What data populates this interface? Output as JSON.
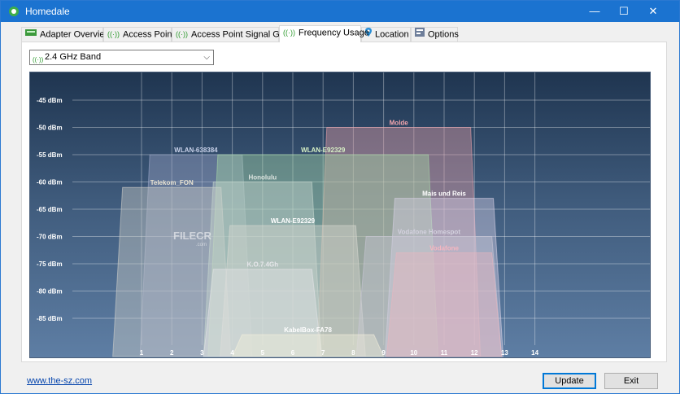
{
  "window": {
    "title": "Homedale",
    "minimize": "—",
    "maximize": "☐",
    "close": "✕"
  },
  "tabs": [
    {
      "label": "Adapter Overview"
    },
    {
      "label": "Access Points"
    },
    {
      "label": "Access Point Signal Graph"
    },
    {
      "label": "Frequency Usage"
    },
    {
      "label": "Location"
    },
    {
      "label": "Options"
    }
  ],
  "band_select": {
    "value": "2.4 GHz Band"
  },
  "chart_data": {
    "type": "area",
    "y_ticks": [
      "-45 dBm",
      "-50 dBm",
      "-55 dBm",
      "-60 dBm",
      "-65 dBm",
      "-70 dBm",
      "-75 dBm",
      "-80 dBm",
      "-85 dBm"
    ],
    "y_values": [
      -45,
      -50,
      -55,
      -60,
      -65,
      -70,
      -75,
      -80,
      -85
    ],
    "x_ticks": [
      "1",
      "2",
      "3",
      "4",
      "5",
      "6",
      "7",
      "8",
      "9",
      "10",
      "11",
      "12",
      "13",
      "14"
    ],
    "ylim": [
      -40,
      -95
    ],
    "networks": [
      {
        "name": "Molde",
        "center": 9.5,
        "width": 5.4,
        "level": -50,
        "color": "#e8a0a8",
        "label_color": "#f4a6ae"
      },
      {
        "name": "WLAN-638384",
        "center": 2.8,
        "width": 3.7,
        "level": -55,
        "color": "#9aa5c6",
        "label_color": "#c9d2ea"
      },
      {
        "name": "WLAN-E92329",
        "center": 7.0,
        "width": 7.6,
        "level": -55,
        "color": "#a8d9a8",
        "label_color": "#d8f2c6"
      },
      {
        "name": "Telekom_FON",
        "center": 2.0,
        "width": 3.9,
        "level": -61,
        "color": "#cfcfc9",
        "label_color": "#e8e3d2"
      },
      {
        "name": "Honolulu",
        "center": 5.0,
        "width": 3.9,
        "level": -60,
        "color": "#c7d7cf",
        "label_color": "#dde5e0"
      },
      {
        "name": "Mais und Reis",
        "center": 11.0,
        "width": 3.9,
        "level": -63,
        "color": "#d8d2e6",
        "label_color": "#ffffff"
      },
      {
        "name": "WLAN-E92329",
        "center": 6.0,
        "width": 4.8,
        "level": -68,
        "color": "#d9d9d2",
        "label_color": "#ffffff"
      },
      {
        "name": "Vodafone Homespot",
        "center": 10.5,
        "width": 4.8,
        "level": -70,
        "color": "#c9c7d6",
        "label_color": "#d4d2df"
      },
      {
        "name": "Vodafone",
        "center": 11.0,
        "width": 3.8,
        "level": -73,
        "color": "#eab6be",
        "label_color": "#f6b6c0"
      },
      {
        "name": "K.O.7.4Gh",
        "center": 5.0,
        "width": 3.9,
        "level": -76,
        "color": "#e4e4e8",
        "label_color": "#e6e6ea"
      },
      {
        "name": "KabelBox-FA78",
        "center": 6.5,
        "width": 5.0,
        "level": -88,
        "color": "#f4f0dc",
        "label_color": "#ffffff"
      }
    ]
  },
  "watermark": {
    "text": "FILECR",
    "sub": ".com"
  },
  "footer": {
    "link": "www.the-sz.com",
    "update": "Update",
    "exit": "Exit"
  }
}
